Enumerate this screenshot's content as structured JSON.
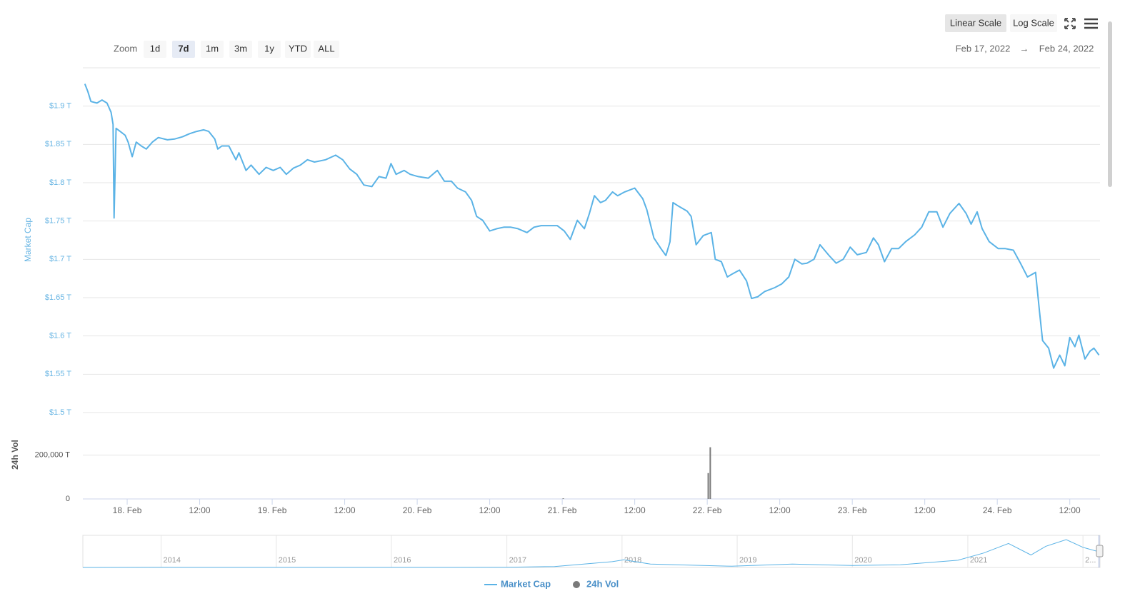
{
  "chart_data": {
    "type": "line",
    "y_title": "Market Cap",
    "y2_title": "24h Vol",
    "zoom": {
      "label": "Zoom",
      "buttons": [
        "1d",
        "7d",
        "1m",
        "3m",
        "1y",
        "YTD",
        "ALL"
      ],
      "selected": "7d"
    },
    "scale_buttons": {
      "linear": "Linear Scale",
      "log": "Log Scale"
    },
    "log_scale": false,
    "range": {
      "from": "Feb 17, 2022",
      "separator": "→",
      "to": "Feb 24, 2022"
    },
    "grid": true,
    "legend": "bottom",
    "xlim": [
      "2022-02-17T16:40",
      "2022-02-24T17:00"
    ],
    "xticks": [
      {
        "value": "2022-02-18T00:00",
        "label": "18. Feb"
      },
      {
        "value": "2022-02-18T12:00",
        "label": "12:00"
      },
      {
        "value": "2022-02-19T00:00",
        "label": "19. Feb"
      },
      {
        "value": "2022-02-19T12:00",
        "label": "12:00"
      },
      {
        "value": "2022-02-20T00:00",
        "label": "20. Feb"
      },
      {
        "value": "2022-02-20T12:00",
        "label": "12:00"
      },
      {
        "value": "2022-02-21T00:00",
        "label": "21. Feb"
      },
      {
        "value": "2022-02-21T12:00",
        "label": "12:00"
      },
      {
        "value": "2022-02-22T00:00",
        "label": "22. Feb"
      },
      {
        "value": "2022-02-22T12:00",
        "label": "12:00"
      },
      {
        "value": "2022-02-23T00:00",
        "label": "23. Feb"
      },
      {
        "value": "2022-02-23T12:00",
        "label": "12:00"
      },
      {
        "value": "2022-02-24T00:00",
        "label": "24. Feb"
      },
      {
        "value": "2022-02-24T12:00",
        "label": "12:00"
      }
    ],
    "ylim": [
      1.5,
      1.95
    ],
    "yticks": [
      {
        "value": 1.5,
        "label": "$1.5 T"
      },
      {
        "value": 1.55,
        "label": "$1.55 T"
      },
      {
        "value": 1.6,
        "label": "$1.6 T"
      },
      {
        "value": 1.65,
        "label": "$1.65 T"
      },
      {
        "value": 1.7,
        "label": "$1.7 T"
      },
      {
        "value": 1.75,
        "label": "$1.75 T"
      },
      {
        "value": 1.8,
        "label": "$1.8 T"
      },
      {
        "value": 1.85,
        "label": "$1.85 T"
      },
      {
        "value": 1.9,
        "label": "$1.9 T"
      }
    ],
    "y2lim": [
      0,
      290000
    ],
    "y2ticks": [
      0,
      {
        "value": 200000,
        "label": "200,000 T"
      }
    ],
    "series": [
      {
        "name": "Market Cap",
        "color": "#5bb3e6",
        "x": [
          "2022-02-17T17:00",
          "2022-02-17T17:30",
          "2022-02-17T18:00",
          "2022-02-17T19:00",
          "2022-02-17T19:50",
          "2022-02-17T20:40",
          "2022-02-17T21:20",
          "2022-02-17T21:40",
          "2022-02-17T21:50",
          "2022-02-17T22:10",
          "2022-02-17T22:50",
          "2022-02-17T23:40",
          "2022-02-18T00:10",
          "2022-02-18T00:50",
          "2022-02-18T01:30",
          "2022-02-18T02:20",
          "2022-02-18T03:10",
          "2022-02-18T04:10",
          "2022-02-18T05:10",
          "2022-02-18T06:40",
          "2022-02-18T07:50",
          "2022-02-18T09:10",
          "2022-02-18T10:20",
          "2022-02-18T11:30",
          "2022-02-18T12:40",
          "2022-02-18T13:30",
          "2022-02-18T14:30",
          "2022-02-18T15:00",
          "2022-02-18T15:40",
          "2022-02-18T16:50",
          "2022-02-18T18:00",
          "2022-02-18T18:30",
          "2022-02-18T19:40",
          "2022-02-18T20:30",
          "2022-02-18T21:50",
          "2022-02-18T23:00",
          "2022-02-19T00:10",
          "2022-02-19T01:20",
          "2022-02-19T02:20",
          "2022-02-19T03:30",
          "2022-02-19T04:40",
          "2022-02-19T05:50",
          "2022-02-19T07:00",
          "2022-02-19T08:50",
          "2022-02-19T10:30",
          "2022-02-19T11:40",
          "2022-02-19T12:50",
          "2022-02-19T14:00",
          "2022-02-19T15:10",
          "2022-02-19T16:30",
          "2022-02-19T17:40",
          "2022-02-19T18:50",
          "2022-02-19T19:40",
          "2022-02-19T20:30",
          "2022-02-19T21:50",
          "2022-02-19T22:50",
          "2022-02-20T00:10",
          "2022-02-20T01:50",
          "2022-02-20T03:20",
          "2022-02-20T04:30",
          "2022-02-20T05:40",
          "2022-02-20T06:40",
          "2022-02-20T08:00",
          "2022-02-20T09:00",
          "2022-02-20T09:50",
          "2022-02-20T10:50",
          "2022-02-20T12:00",
          "2022-02-20T13:10",
          "2022-02-20T14:20",
          "2022-02-20T15:30",
          "2022-02-20T16:40",
          "2022-02-20T18:10",
          "2022-02-20T19:20",
          "2022-02-20T20:30",
          "2022-02-20T22:00",
          "2022-02-20T23:10",
          "2022-02-21T00:20",
          "2022-02-21T01:20",
          "2022-02-21T02:30",
          "2022-02-21T03:40",
          "2022-02-21T04:30",
          "2022-02-21T05:20",
          "2022-02-21T06:20",
          "2022-02-21T07:10",
          "2022-02-21T08:20",
          "2022-02-21T09:10",
          "2022-02-21T10:20",
          "2022-02-21T12:00",
          "2022-02-21T13:20",
          "2022-02-21T14:00",
          "2022-02-21T15:10",
          "2022-02-21T16:20",
          "2022-02-21T17:10",
          "2022-02-21T17:50",
          "2022-02-21T18:20",
          "2022-02-21T19:20",
          "2022-02-21T20:40",
          "2022-02-21T21:20",
          "2022-02-21T22:10",
          "2022-02-21T23:20",
          "2022-02-22T00:40",
          "2022-02-22T01:20",
          "2022-02-22T02:20",
          "2022-02-22T03:20",
          "2022-02-22T04:10",
          "2022-02-22T05:20",
          "2022-02-22T06:30",
          "2022-02-22T07:20",
          "2022-02-22T08:20",
          "2022-02-22T09:30",
          "2022-02-22T11:10",
          "2022-02-22T12:20",
          "2022-02-22T13:30",
          "2022-02-22T14:30",
          "2022-02-22T15:40",
          "2022-02-22T16:30",
          "2022-02-22T17:40",
          "2022-02-22T18:40",
          "2022-02-22T20:10",
          "2022-02-22T21:20",
          "2022-02-22T22:30",
          "2022-02-22T23:40",
          "2022-02-23T00:50",
          "2022-02-23T02:20",
          "2022-02-23T03:30",
          "2022-02-23T04:20",
          "2022-02-23T05:20",
          "2022-02-23T06:30",
          "2022-02-23T07:40",
          "2022-02-23T08:50",
          "2022-02-23T10:20",
          "2022-02-23T11:30",
          "2022-02-23T12:40",
          "2022-02-23T14:00",
          "2022-02-23T15:00",
          "2022-02-23T16:10",
          "2022-02-23T17:40",
          "2022-02-23T18:50",
          "2022-02-23T19:40",
          "2022-02-23T20:40",
          "2022-02-23T21:30",
          "2022-02-23T22:40",
          "2022-02-24T00:10",
          "2022-02-24T01:20",
          "2022-02-24T02:40",
          "2022-02-24T03:50",
          "2022-02-24T05:00",
          "2022-02-24T06:20",
          "2022-02-24T07:00",
          "2022-02-24T07:30",
          "2022-02-24T08:30",
          "2022-02-24T09:20",
          "2022-02-24T10:20",
          "2022-02-24T11:10",
          "2022-02-24T12:00",
          "2022-02-24T12:50",
          "2022-02-24T13:30",
          "2022-02-24T14:30",
          "2022-02-24T15:20",
          "2022-02-24T16:00",
          "2022-02-24T16:50"
        ],
        "values": [
          1.929,
          1.919,
          1.906,
          1.904,
          1.908,
          1.904,
          1.892,
          1.876,
          1.754,
          1.871,
          1.867,
          1.862,
          1.853,
          1.834,
          1.853,
          1.848,
          1.844,
          1.853,
          1.859,
          1.856,
          1.857,
          1.86,
          1.864,
          1.867,
          1.869,
          1.867,
          1.857,
          1.844,
          1.848,
          1.848,
          1.83,
          1.839,
          1.816,
          1.823,
          1.811,
          1.82,
          1.816,
          1.82,
          1.811,
          1.819,
          1.823,
          1.83,
          1.827,
          1.83,
          1.836,
          1.83,
          1.818,
          1.811,
          1.797,
          1.795,
          1.808,
          1.806,
          1.825,
          1.811,
          1.816,
          1.811,
          1.808,
          1.806,
          1.816,
          1.802,
          1.802,
          1.793,
          1.788,
          1.777,
          1.756,
          1.751,
          1.737,
          1.74,
          1.742,
          1.742,
          1.74,
          1.735,
          1.742,
          1.744,
          1.744,
          1.744,
          1.737,
          1.726,
          1.751,
          1.74,
          1.76,
          1.783,
          1.774,
          1.777,
          1.788,
          1.783,
          1.788,
          1.793,
          1.779,
          1.765,
          1.728,
          1.714,
          1.705,
          1.723,
          1.774,
          1.769,
          1.763,
          1.756,
          1.719,
          1.731,
          1.735,
          1.7,
          1.697,
          1.677,
          1.681,
          1.686,
          1.672,
          1.649,
          1.651,
          1.658,
          1.663,
          1.668,
          1.677,
          1.7,
          1.694,
          1.695,
          1.7,
          1.719,
          1.705,
          1.695,
          1.7,
          1.716,
          1.706,
          1.709,
          1.728,
          1.719,
          1.697,
          1.714,
          1.714,
          1.723,
          1.732,
          1.742,
          1.762,
          1.762,
          1.742,
          1.76,
          1.773,
          1.76,
          1.746,
          1.762,
          1.74,
          1.723,
          1.714,
          1.714,
          1.712,
          1.695,
          1.677,
          1.683,
          1.631,
          1.594,
          1.584,
          1.558,
          1.575,
          1.561,
          1.598,
          1.586,
          1.601,
          1.57,
          1.58,
          1.584,
          1.575
        ]
      },
      {
        "name": "24h Vol",
        "color": "#7a7a7a",
        "axis": "y2",
        "x": [
          "2022-02-21T00:10",
          "2022-02-22T00:10",
          "2022-02-22T00:30"
        ],
        "values": [
          3000,
          118000,
          236000
        ]
      }
    ],
    "navigator": {
      "color": "#5bb3e6",
      "xlim": [
        "2013-04-28",
        "2022-02-24"
      ],
      "ylim": [
        0,
        3.2
      ],
      "xticks": [
        {
          "value": "2014-01-01",
          "label": "2014"
        },
        {
          "value": "2015-01-01",
          "label": "2015"
        },
        {
          "value": "2016-01-01",
          "label": "2016"
        },
        {
          "value": "2017-01-01",
          "label": "2017"
        },
        {
          "value": "2018-01-01",
          "label": "2018"
        },
        {
          "value": "2019-01-01",
          "label": "2019"
        },
        {
          "value": "2020-01-01",
          "label": "2020"
        },
        {
          "value": "2021-01-01",
          "label": "2021"
        },
        {
          "value": "2022-01-01",
          "label": "2..."
        }
      ],
      "x": [
        "2013-04-28",
        "2014-01-01",
        "2015-01-01",
        "2016-01-01",
        "2017-01-01",
        "2017-06-01",
        "2017-12-01",
        "2018-01-07",
        "2018-04-01",
        "2018-12-15",
        "2019-06-25",
        "2020-01-01",
        "2020-06-01",
        "2020-12-01",
        "2021-02-20",
        "2021-05-10",
        "2021-07-20",
        "2021-09-05",
        "2021-11-09",
        "2022-01-01",
        "2022-02-24"
      ],
      "values": [
        0.0015,
        0.013,
        0.005,
        0.007,
        0.018,
        0.1,
        0.6,
        0.8,
        0.35,
        0.13,
        0.35,
        0.2,
        0.28,
        0.75,
        1.5,
        2.5,
        1.3,
        2.2,
        2.9,
        2.1,
        1.6
      ]
    }
  }
}
